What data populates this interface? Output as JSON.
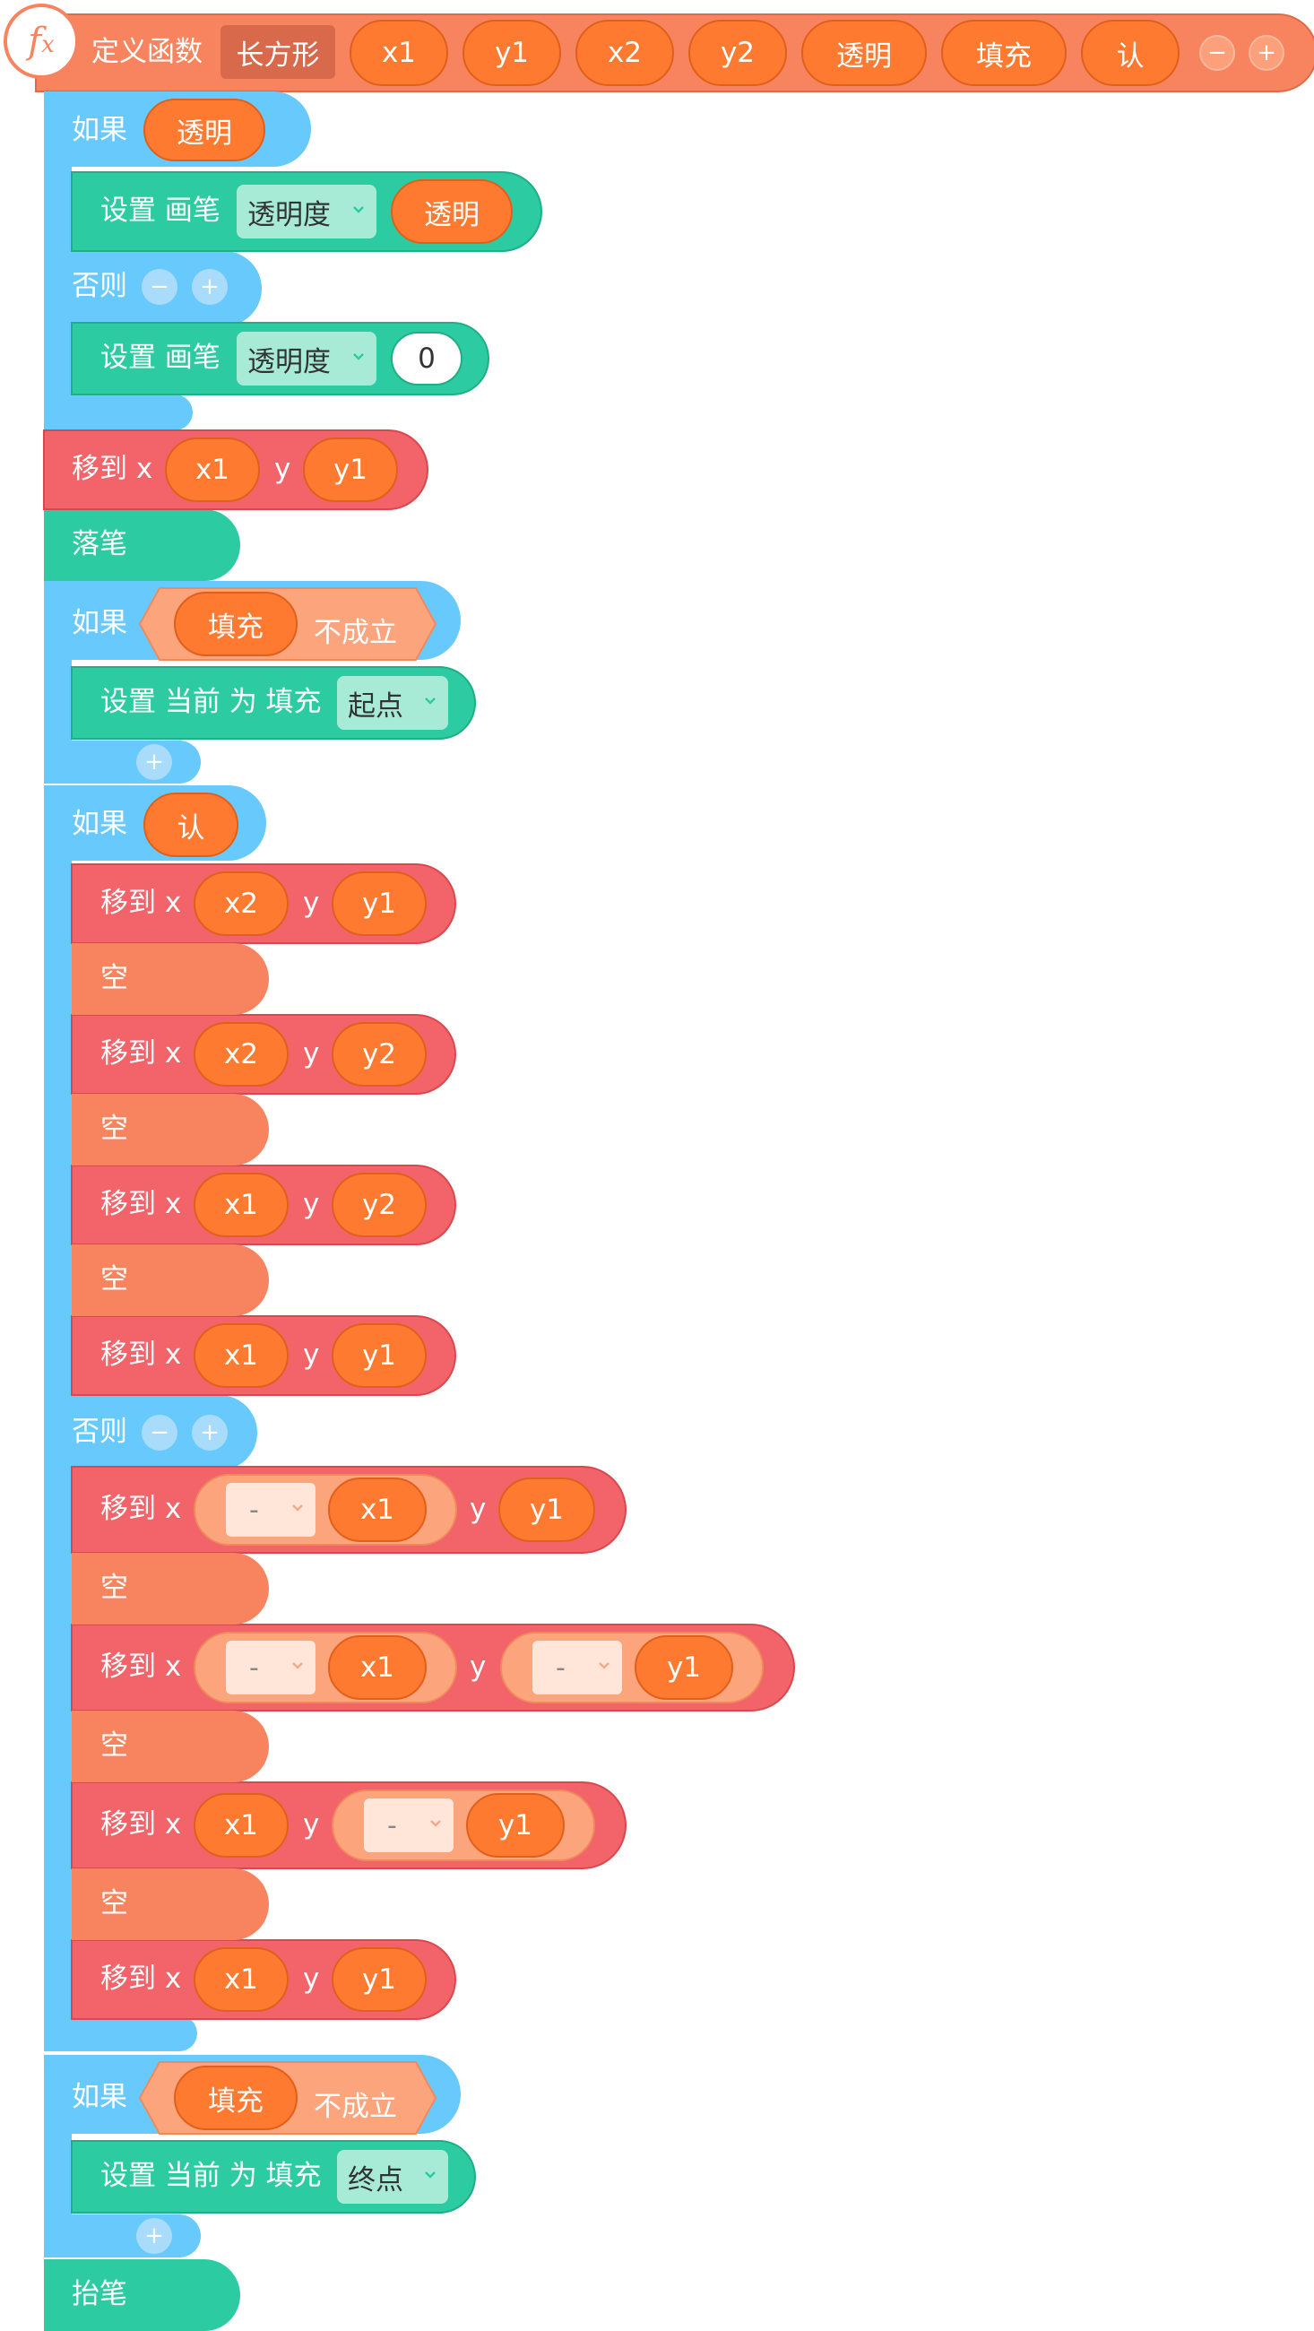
{
  "header": {
    "fx_label": "f",
    "fx_sub": "x",
    "title": "定义函数",
    "function_name": "长方形",
    "params": [
      "x1",
      "y1",
      "x2",
      "y2",
      "透明",
      "填充",
      "认"
    ],
    "minus": "−",
    "plus": "+"
  },
  "if1": {
    "label": "如果",
    "cond": "透明",
    "set1": {
      "label": "设置 画笔",
      "dropdown": "透明度",
      "value": "透明"
    },
    "else_label": "否则",
    "set2": {
      "label": "设置 画笔",
      "dropdown": "透明度",
      "value": "0"
    }
  },
  "move0": {
    "label": "移到 x",
    "x": "x1",
    "y_label": "y",
    "y": "y1"
  },
  "pen_down": "落笔",
  "if2": {
    "label": "如果",
    "cond_var": "填充",
    "cond_not": "不成立",
    "set": {
      "label": "设置 当前 为 填充",
      "dropdown": "起点"
    }
  },
  "if3": {
    "label": "如果",
    "cond": "认",
    "blocks": [
      {
        "label": "移到 x",
        "x": "x2",
        "y_label": "y",
        "y": "y1"
      },
      {
        "label": "空"
      },
      {
        "label": "移到 x",
        "x": "x2",
        "y_label": "y",
        "y": "y2"
      },
      {
        "label": "空"
      },
      {
        "label": "移到 x",
        "x": "x1",
        "y_label": "y",
        "y": "y2"
      },
      {
        "label": "空"
      },
      {
        "label": "移到 x",
        "x": "x1",
        "y_label": "y",
        "y": "y1"
      }
    ],
    "else_label": "否则",
    "else_blocks": {
      "m1": {
        "label": "移到 x",
        "op": "-",
        "x": "x1",
        "y_label": "y",
        "y": "y1"
      },
      "e1": "空",
      "m2": {
        "label": "移到 x",
        "op1": "-",
        "x": "x1",
        "y_label": "y",
        "op2": "-",
        "y": "y1"
      },
      "e2": "空",
      "m3": {
        "label": "移到 x",
        "x": "x1",
        "y_label": "y",
        "op": "-",
        "y": "y1"
      },
      "e3": "空",
      "m4": {
        "label": "移到 x",
        "x": "x1",
        "y_label": "y",
        "y": "y1"
      }
    }
  },
  "if4": {
    "label": "如果",
    "cond_var": "填充",
    "cond_not": "不成立",
    "set": {
      "label": "设置 当前 为 填充",
      "dropdown": "终点"
    }
  },
  "pen_up": "抬笔",
  "colors": {
    "define": "#f8845f",
    "control": "#68c9fc",
    "pen": "#2ccba2",
    "motion": "#f2636a",
    "empty": "#f8845f",
    "variable": "#fe7a30"
  }
}
